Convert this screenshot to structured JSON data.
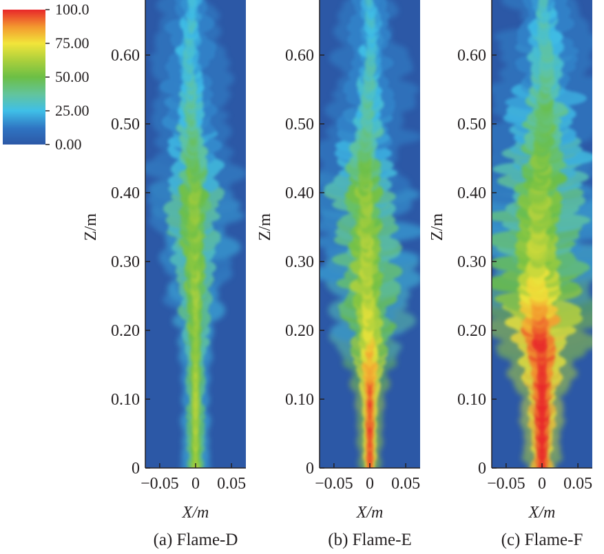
{
  "colorbar": {
    "ticks": [
      "100.0",
      "75.00",
      "50.00",
      "25.00",
      "0.00"
    ],
    "tick_values": [
      100,
      75,
      50,
      25,
      0
    ],
    "range": [
      0,
      100
    ],
    "colors": [
      "#2c58a6",
      "#3fbfe8",
      "#6cbf45",
      "#f2e53a",
      "#e8272a"
    ]
  },
  "chart_data": [
    {
      "type": "heatmap",
      "title": "(a) Flame-D",
      "xlabel": "X/m",
      "ylabel": "Z/m",
      "xlim": [
        -0.07,
        0.07
      ],
      "ylim": [
        0,
        0.68
      ],
      "x_ticks": [
        "−0.05",
        "0",
        "0.05"
      ],
      "x_tick_values": [
        -0.05,
        0,
        0.05
      ],
      "y_ticks": [
        "0",
        "0.10",
        "0.20",
        "0.30",
        "0.40",
        "0.50",
        "0.60"
      ],
      "y_tick_values": [
        0,
        0.1,
        0.2,
        0.3,
        0.4,
        0.5,
        0.6
      ],
      "profile": {
        "z": [
          0,
          0.1,
          0.2,
          0.3,
          0.4,
          0.5,
          0.6,
          0.68
        ],
        "width": [
          0.008,
          0.008,
          0.01,
          0.018,
          0.022,
          0.02,
          0.018,
          0.014
        ],
        "core_value": [
          55,
          55,
          52,
          50,
          48,
          30,
          22,
          20
        ],
        "center_shift": [
          0,
          0,
          0,
          -0.002,
          -0.002,
          -0.006,
          -0.01,
          -0.004
        ]
      }
    },
    {
      "type": "heatmap",
      "title": "(b) Flame-E",
      "xlabel": "X/m",
      "ylabel": "Z/m",
      "xlim": [
        -0.07,
        0.07
      ],
      "ylim": [
        0,
        0.68
      ],
      "x_ticks": [
        "−0.05",
        "0",
        "0.05"
      ],
      "x_tick_values": [
        -0.05,
        0,
        0.05
      ],
      "y_ticks": [
        "0",
        "0.10",
        "0.20",
        "0.30",
        "0.40",
        "0.50",
        "0.60"
      ],
      "y_tick_values": [
        0,
        0.1,
        0.2,
        0.3,
        0.4,
        0.5,
        0.6
      ],
      "profile": {
        "z": [
          0,
          0.1,
          0.15,
          0.2,
          0.3,
          0.4,
          0.5,
          0.6,
          0.68
        ],
        "width": [
          0.006,
          0.008,
          0.014,
          0.02,
          0.024,
          0.026,
          0.022,
          0.018,
          0.014
        ],
        "core_value": [
          90,
          88,
          80,
          62,
          55,
          48,
          30,
          22,
          18
        ],
        "center_shift": [
          0,
          0,
          0,
          -0.002,
          -0.004,
          -0.008,
          -0.004,
          0.002,
          0
        ]
      }
    },
    {
      "type": "heatmap",
      "title": "(c) Flame-F",
      "xlabel": "X/m",
      "ylabel": "Z/m",
      "xlim": [
        -0.07,
        0.07
      ],
      "ylim": [
        0,
        0.68
      ],
      "x_ticks": [
        "−0.05",
        "0",
        "0.05"
      ],
      "x_tick_values": [
        -0.05,
        0,
        0.05
      ],
      "y_ticks": [
        "0",
        "0.10",
        "0.20",
        "0.30",
        "0.40",
        "0.50",
        "0.60"
      ],
      "y_tick_values": [
        0,
        0.1,
        0.2,
        0.3,
        0.4,
        0.5,
        0.6
      ],
      "profile": {
        "z": [
          0,
          0.1,
          0.15,
          0.2,
          0.25,
          0.3,
          0.4,
          0.5,
          0.6,
          0.68
        ],
        "width": [
          0.01,
          0.014,
          0.02,
          0.028,
          0.034,
          0.036,
          0.036,
          0.03,
          0.024,
          0.02
        ],
        "core_value": [
          95,
          95,
          92,
          90,
          72,
          58,
          50,
          40,
          28,
          22
        ],
        "center_shift": [
          0,
          0,
          0,
          -0.002,
          -0.004,
          -0.006,
          -0.004,
          0.004,
          0.006,
          0
        ]
      }
    }
  ]
}
